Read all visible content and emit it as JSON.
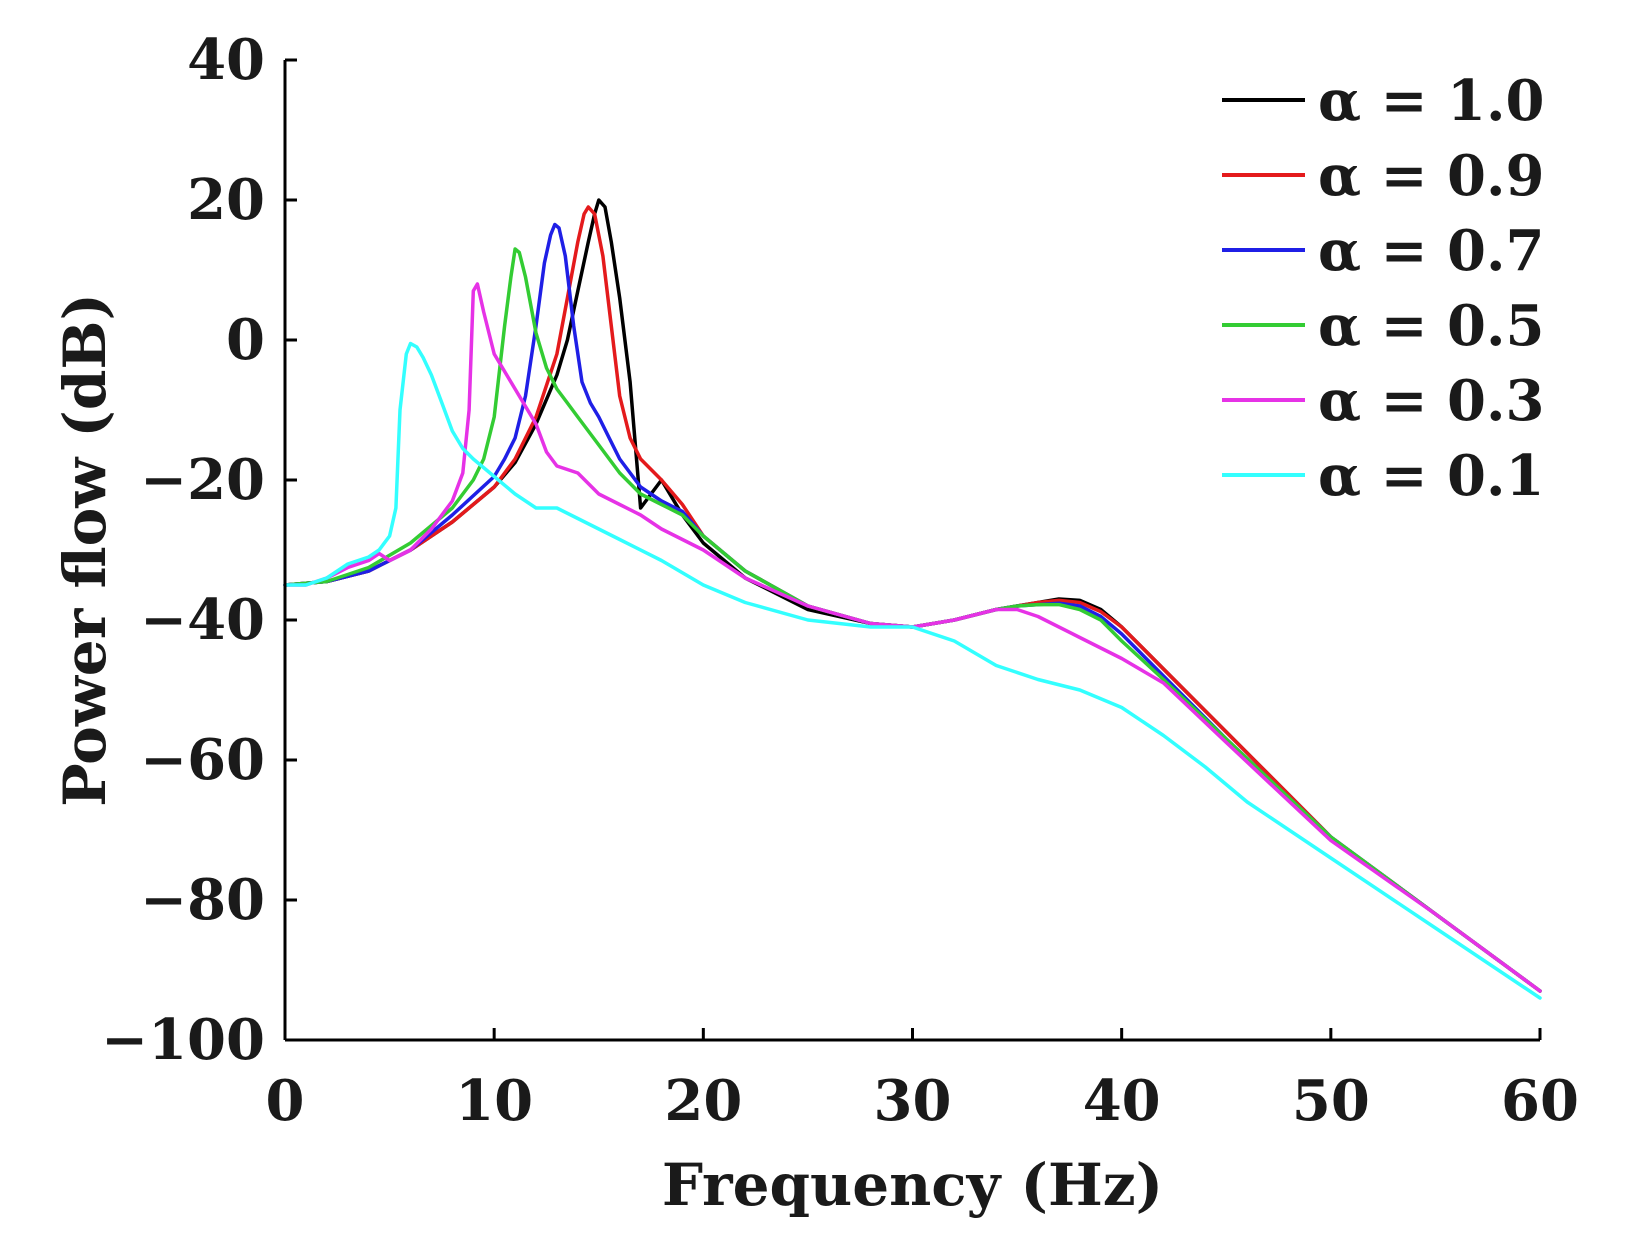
{
  "chart_data": {
    "type": "line",
    "title": "",
    "xlabel": "Frequency (Hz)",
    "ylabel": "Power flow (dB)",
    "xlim": [
      0,
      60
    ],
    "ylim": [
      -100,
      40
    ],
    "xticks": [
      0,
      10,
      20,
      30,
      40,
      50,
      60
    ],
    "xtick_labels": [
      "0",
      "10",
      "20",
      "30",
      "40",
      "50",
      "60"
    ],
    "yticks": [
      -100,
      -80,
      -60,
      -40,
      -20,
      0,
      20,
      40
    ],
    "ytick_labels": [
      "−100",
      "−80",
      "−60",
      "−40",
      "−20",
      "0",
      "20",
      "40"
    ],
    "grid": false,
    "legend_position": "top-right",
    "series": [
      {
        "name": "α = 1.0",
        "color": "#000000",
        "x": [
          0,
          2,
          4,
          6,
          8,
          10,
          11,
          12,
          13,
          13.5,
          14,
          14.5,
          14.8,
          15,
          15.3,
          15.6,
          16,
          16.5,
          17,
          17.5,
          18,
          19,
          20,
          22,
          25,
          28,
          30,
          32,
          34,
          35,
          36,
          37,
          38,
          39,
          40,
          42,
          45,
          50,
          55,
          60
        ],
        "y": [
          -35,
          -34.5,
          -33,
          -30,
          -26,
          -21,
          -17.5,
          -12,
          -5,
          0,
          7,
          14,
          18,
          20,
          19,
          14,
          6,
          -6,
          -24,
          -22,
          -20,
          -25,
          -29,
          -34,
          -38.5,
          -40.5,
          -41,
          -40,
          -38.5,
          -38,
          -37.5,
          -37,
          -37.2,
          -38.5,
          -41,
          -47,
          -56,
          -71,
          -82,
          -93
        ]
      },
      {
        "name": "α = 0.9",
        "color": "#e41a1c",
        "x": [
          0,
          2,
          4,
          6,
          8,
          10,
          11,
          12,
          13,
          13.5,
          14,
          14.3,
          14.5,
          14.8,
          15.2,
          15.6,
          16,
          16.5,
          17,
          18,
          19,
          20,
          22,
          25,
          28,
          30,
          32,
          34,
          35,
          36,
          37,
          38,
          39,
          40,
          42,
          45,
          50,
          55,
          60
        ],
        "y": [
          -35,
          -34.5,
          -33,
          -30,
          -26,
          -21,
          -17,
          -11,
          -2,
          6,
          14,
          18,
          19,
          18,
          12,
          2,
          -8,
          -14,
          -17,
          -20,
          -23.5,
          -28,
          -33,
          -38,
          -40.5,
          -41,
          -40,
          -38.5,
          -38,
          -37.5,
          -37.2,
          -37.5,
          -38.8,
          -41,
          -47,
          -56,
          -71,
          -82,
          -93
        ]
      },
      {
        "name": "α = 0.7",
        "color": "#1f1fe6",
        "x": [
          0,
          2,
          4,
          6,
          8,
          10,
          10.5,
          11,
          11.5,
          12,
          12.4,
          12.7,
          12.9,
          13.1,
          13.4,
          13.8,
          14.2,
          14.6,
          15,
          15.5,
          16,
          17,
          18,
          19,
          20,
          22,
          25,
          28,
          30,
          32,
          34,
          35,
          36,
          37,
          38,
          39,
          40,
          42,
          45,
          50,
          55,
          60
        ],
        "y": [
          -35,
          -34.5,
          -33,
          -30,
          -25,
          -19.5,
          -17,
          -14,
          -8,
          2,
          11,
          15,
          16.5,
          16,
          12,
          2,
          -6,
          -9,
          -11,
          -14,
          -17,
          -21,
          -23,
          -24.5,
          -28,
          -33,
          -38,
          -40.5,
          -41,
          -40,
          -38.5,
          -38,
          -37.8,
          -37.6,
          -38,
          -39.5,
          -42,
          -48,
          -57,
          -71,
          -82,
          -93
        ]
      },
      {
        "name": "α = 0.5",
        "color": "#33cc33",
        "x": [
          0,
          2,
          4,
          6,
          8,
          9,
          9.5,
          10,
          10.5,
          10.8,
          11,
          11.2,
          11.5,
          12,
          12.5,
          13,
          13.5,
          14,
          15,
          16,
          17,
          18,
          19,
          20,
          22,
          25,
          28,
          30,
          32,
          34,
          35,
          36,
          37,
          38,
          39,
          40,
          42,
          45,
          50,
          55,
          60
        ],
        "y": [
          -35,
          -34.5,
          -32.5,
          -29,
          -24,
          -20,
          -17,
          -11,
          2,
          9,
          13,
          12.5,
          9,
          1,
          -4,
          -7,
          -9,
          -11,
          -15,
          -19,
          -22,
          -23.5,
          -25,
          -28,
          -33,
          -38,
          -40.5,
          -41,
          -40,
          -38.5,
          -38,
          -37.8,
          -37.8,
          -38.5,
          -40,
          -43,
          -48.5,
          -57,
          -71,
          -82,
          -93
        ]
      },
      {
        "name": "α = 0.3",
        "color": "#e632e6",
        "x": [
          0,
          1,
          2,
          3,
          4,
          4.5,
          5,
          6,
          7,
          8,
          8.5,
          8.8,
          9,
          9.2,
          9.5,
          10,
          11,
          12,
          12.5,
          13,
          14,
          14.5,
          15,
          16,
          17,
          18,
          20,
          22,
          25,
          28,
          30,
          32,
          34,
          35,
          36,
          38,
          40,
          42,
          45,
          50,
          55,
          60
        ],
        "y": [
          -35,
          -35,
          -34,
          -32.5,
          -31.5,
          -30.5,
          -31.5,
          -30,
          -27,
          -23,
          -19,
          -10,
          7,
          8,
          4,
          -2,
          -7,
          -12,
          -16,
          -18,
          -19,
          -20.5,
          -22,
          -23.5,
          -25,
          -27,
          -30,
          -34,
          -38,
          -40.5,
          -41,
          -40,
          -38.5,
          -38.5,
          -39.5,
          -42.5,
          -45.5,
          -49,
          -57.5,
          -71.5,
          -82,
          -93
        ]
      },
      {
        "name": "α = 0.1",
        "color": "#33ffff",
        "x": [
          0,
          1,
          2,
          3,
          4,
          4.5,
          5,
          5.3,
          5.5,
          5.8,
          6,
          6.3,
          6.6,
          7,
          7.5,
          8,
          8.5,
          9,
          10,
          11,
          12,
          13,
          14,
          16,
          18,
          20,
          22,
          25,
          28,
          30,
          32,
          34,
          36,
          38,
          40,
          42,
          44,
          46,
          50,
          55,
          60
        ],
        "y": [
          -35,
          -35,
          -34,
          -32,
          -31,
          -30,
          -28,
          -24,
          -10,
          -2,
          -0.5,
          -1,
          -2.5,
          -5,
          -9,
          -13,
          -15.5,
          -17,
          -19.5,
          -22,
          -24,
          -24,
          -25.5,
          -28.5,
          -31.5,
          -35,
          -37.5,
          -40,
          -41,
          -41,
          -43,
          -46.5,
          -48.5,
          -50,
          -52.5,
          -56.5,
          -61,
          -66,
          -74,
          -84,
          -94
        ]
      }
    ]
  }
}
